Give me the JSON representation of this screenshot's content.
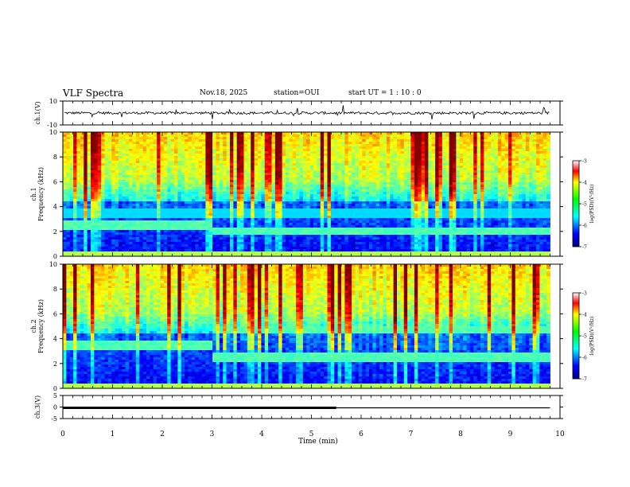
{
  "header": {
    "title": "VLF Spectra",
    "date": "Nov.18, 2025",
    "station": "station=OUI",
    "start": "start  UT  =   1 : 10 : 0"
  },
  "colors": {
    "spectrogram_low": "#00008b",
    "spectrogram_mid": "#00ff80",
    "spectrogram_high": "#ff0000",
    "trace": "#000000"
  },
  "chart_data": [
    {
      "type": "line",
      "panel": "ch1-waveform",
      "ylabel": "ch.1(V)",
      "ylim": [
        -10,
        10
      ],
      "ytick_labels": [
        "10",
        "-10"
      ],
      "baseline": 0,
      "note": "noisy trace around 0 V with occasional spikes"
    },
    {
      "type": "heatmap",
      "panel": "ch1-spectrogram",
      "ylabel": "ch.1 Frequency (kHz)",
      "ylim": [
        0,
        10
      ],
      "ytick_labels": [
        "0",
        "2",
        "4",
        "6",
        "8",
        "10"
      ],
      "colorbar": {
        "label": "log(PSD)(V²/Hz)",
        "range": [
          -7,
          -3
        ],
        "tick_labels": [
          "-3",
          "-4",
          "-5",
          "-6",
          "-7"
        ]
      },
      "features": [
        {
          "description": "strong band",
          "freq_khz": 2.5,
          "t_start_min": 0,
          "t_end_min": 3
        },
        {
          "description": "strong band",
          "freq_khz": 2.0,
          "t_start_min": 3,
          "t_end_min": 9.8
        },
        {
          "description": "weak band",
          "freq_khz": 3.5,
          "t_start_min": 0,
          "t_end_min": 9.8
        }
      ]
    },
    {
      "type": "heatmap",
      "panel": "ch2-spectrogram",
      "ylabel": "ch.2 Frequency (kHz)",
      "ylim": [
        0,
        10
      ],
      "ytick_labels": [
        "0",
        "2",
        "4",
        "6",
        "8",
        "10"
      ],
      "colorbar": {
        "label": "log(PSD)(V²/Hz)",
        "range": [
          -7,
          -3
        ],
        "tick_labels": [
          "-3",
          "-4",
          "-5",
          "-6",
          "-7"
        ]
      },
      "features": [
        {
          "description": "strong band",
          "freq_khz": 3.5,
          "t_start_min": 0,
          "t_end_min": 3
        },
        {
          "description": "strong band",
          "freq_khz": 2.5,
          "t_start_min": 3,
          "t_end_min": 9.8
        },
        {
          "description": "band",
          "freq_khz": 4.7,
          "t_start_min": 3,
          "t_end_min": 9.8
        }
      ]
    },
    {
      "type": "line",
      "panel": "ch3-level",
      "ylabel": "ch.3(V)",
      "ylim": [
        -5,
        5
      ],
      "ytick_labels": [
        "5",
        "0",
        "-5"
      ],
      "series": [
        {
          "name": "thick",
          "x": [
            0,
            5.5
          ],
          "y": [
            0,
            0
          ]
        },
        {
          "name": "thin",
          "x": [
            5.5,
            9.8
          ],
          "y": [
            0,
            0
          ]
        }
      ]
    }
  ],
  "xaxis": {
    "label": "Time  (min)",
    "range": [
      0,
      10
    ],
    "tick_labels": [
      "0",
      "1",
      "2",
      "3",
      "4",
      "5",
      "6",
      "7",
      "8",
      "9",
      "10"
    ],
    "data_end_min": 9.8
  }
}
